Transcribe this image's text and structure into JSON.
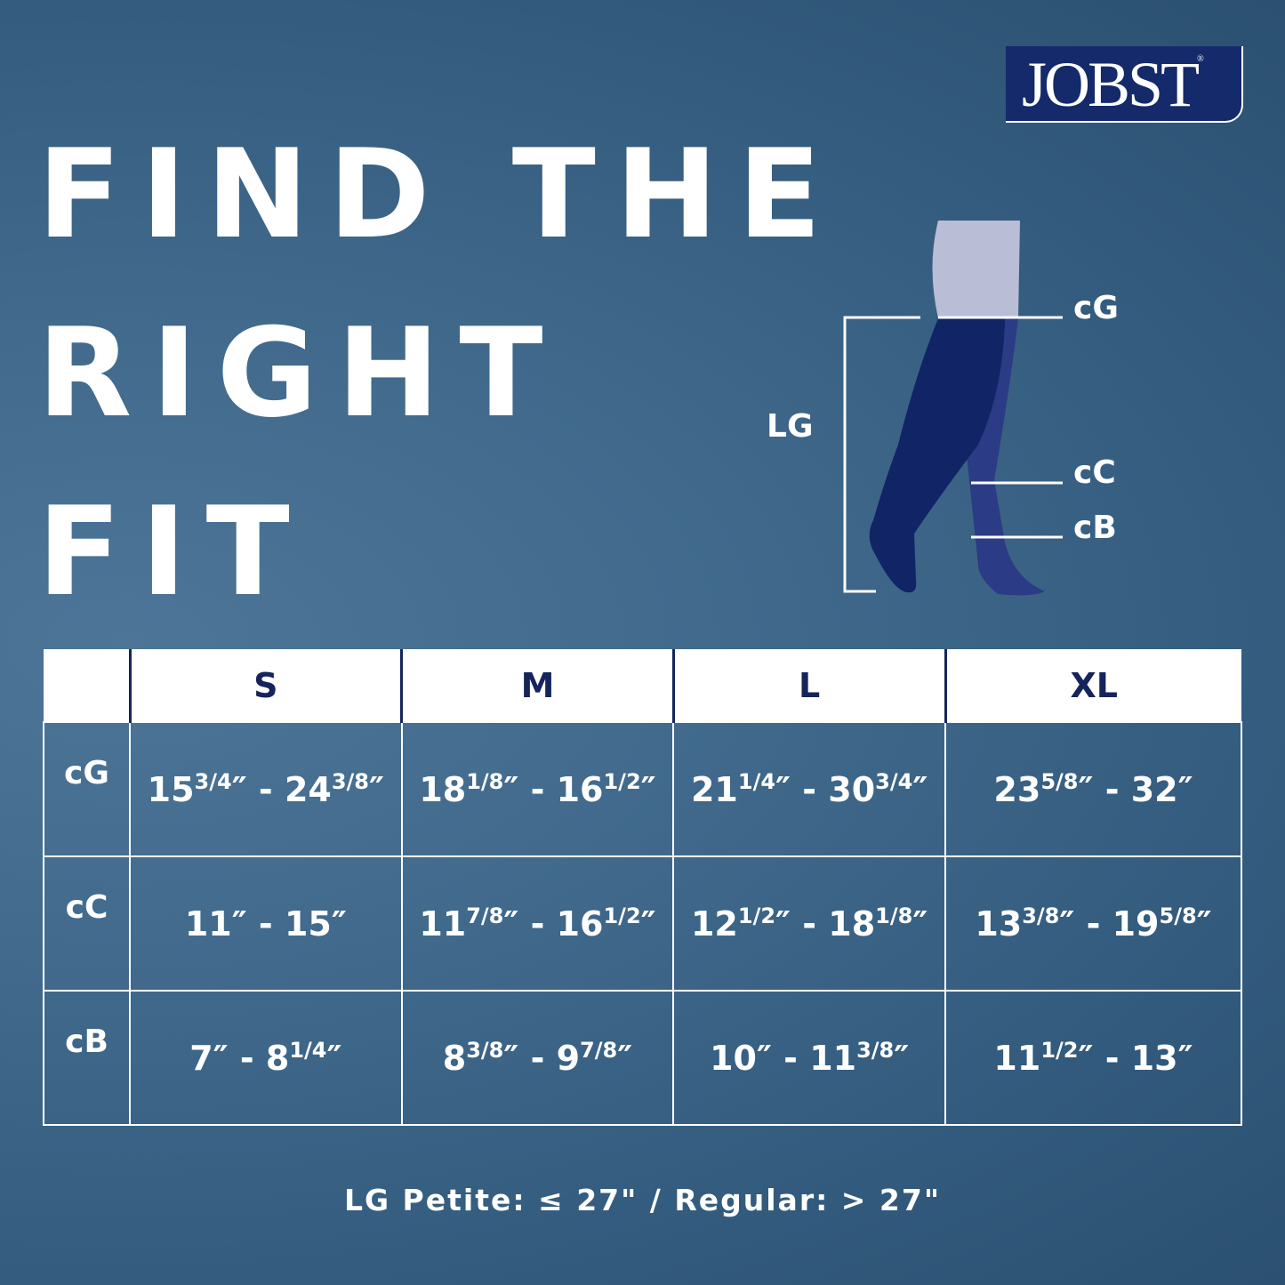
{
  "brand": {
    "logo_text": "JOBST",
    "registered": "®"
  },
  "headline": [
    "FIND THE",
    "RIGHT",
    "FIT"
  ],
  "diagram": {
    "labels": {
      "cG": "cG",
      "cC": "cC",
      "cB": "cB",
      "LG": "LG"
    }
  },
  "table": {
    "headers": [
      "",
      "S",
      "M",
      "L",
      "XL"
    ],
    "rows": [
      {
        "label": "cG",
        "cells": [
          [
            "15",
            "3/4",
            "24",
            "3/8"
          ],
          [
            "18",
            "1/8",
            "16",
            "1/2"
          ],
          [
            "21",
            "1/4",
            "30",
            "3/4"
          ],
          [
            "23",
            "5/8",
            "32",
            ""
          ]
        ]
      },
      {
        "label": "cC",
        "cells": [
          [
            "11",
            "",
            "15",
            ""
          ],
          [
            "11",
            "7/8",
            "16",
            "1/2"
          ],
          [
            "12",
            "1/2",
            "18",
            "1/8"
          ],
          [
            "13",
            "3/8",
            "19",
            "5/8"
          ]
        ]
      },
      {
        "label": "cB",
        "cells": [
          [
            "7",
            "",
            "8",
            "1/4"
          ],
          [
            "8",
            "3/8",
            "9",
            "7/8"
          ],
          [
            "10",
            "",
            "11",
            "3/8"
          ],
          [
            "11",
            "1/2",
            "13",
            ""
          ]
        ]
      }
    ]
  },
  "footer": "LG Petite: ≤ 27\" / Regular: > 27\"",
  "colors": {
    "navy": "#142a6a",
    "background": "#416a8d"
  }
}
